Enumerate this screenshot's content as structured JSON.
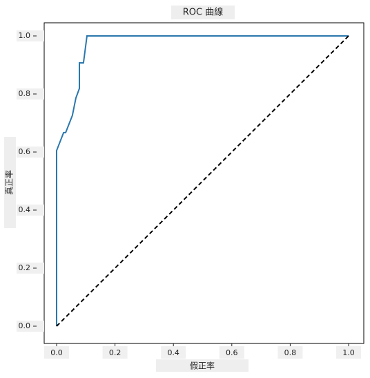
{
  "chart_data": {
    "type": "line",
    "title": "ROC 曲線",
    "x_label": "假正率",
    "y_label": "真正率",
    "xlim": [
      0,
      1
    ],
    "ylim": [
      0,
      1
    ],
    "xticks": [
      {
        "value": 0,
        "label": "0.0"
      },
      0.2,
      0.4,
      0.6,
      0.8,
      {
        "value": 1,
        "label": "1.0"
      }
    ],
    "yticks": [
      {
        "value": 0,
        "label": "0.0"
      },
      0.2,
      0.4,
      0.6,
      0.8,
      {
        "value": 1,
        "label": "1.0"
      }
    ],
    "series": [
      {
        "color": "#2a77ad",
        "dash": "solid",
        "x": [
          0,
          0,
          0.024,
          0.031,
          0.054,
          0.066,
          0.078,
          0.078,
          0.092,
          0.104,
          1
        ],
        "values": [
          0,
          0.605,
          0.667,
          0.667,
          0.726,
          0.786,
          0.819,
          0.907,
          0.907,
          1,
          1
        ]
      },
      {
        "color": "#000000",
        "dash": "dashed",
        "x": [
          0,
          1
        ],
        "values": [
          0,
          1
        ]
      }
    ]
  }
}
